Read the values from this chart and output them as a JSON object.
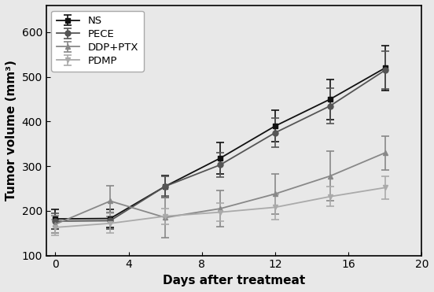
{
  "x": [
    0,
    3,
    6,
    9,
    12,
    15,
    18
  ],
  "NS": {
    "y": [
      182,
      183,
      255,
      318,
      390,
      450,
      520
    ],
    "yerr": [
      22,
      20,
      25,
      35,
      35,
      45,
      50
    ],
    "color": "#111111",
    "marker": "s",
    "label": "NS",
    "linestyle": "-"
  },
  "PECE": {
    "y": [
      177,
      178,
      255,
      303,
      375,
      435,
      515
    ],
    "yerr": [
      18,
      18,
      22,
      28,
      32,
      40,
      42
    ],
    "color": "#555555",
    "marker": "o",
    "label": "PECE",
    "linestyle": "-"
  },
  "DDP_PTX": {
    "y": [
      170,
      222,
      185,
      205,
      238,
      278,
      330
    ],
    "yerr": [
      20,
      35,
      45,
      40,
      45,
      55,
      38
    ],
    "color": "#888888",
    "marker": "^",
    "label": "DDP+PTX",
    "linestyle": "-"
  },
  "PDMP": {
    "y": [
      163,
      172,
      188,
      197,
      208,
      232,
      252
    ],
    "yerr": [
      18,
      22,
      18,
      20,
      28,
      22,
      26
    ],
    "color": "#aaaaaa",
    "marker": "v",
    "label": "PDMP",
    "linestyle": "-"
  },
  "xlabel": "Days after treatmeat",
  "ylabel": "Tumor volume (mm³)",
  "xlim": [
    -0.5,
    20
  ],
  "ylim": [
    100,
    660
  ],
  "xticks": [
    0,
    4,
    8,
    12,
    16,
    20
  ],
  "yticks": [
    100,
    200,
    300,
    400,
    500,
    600
  ],
  "legend_loc": "upper left",
  "figsize": [
    5.52,
    3.71
  ],
  "dpi": 100
}
